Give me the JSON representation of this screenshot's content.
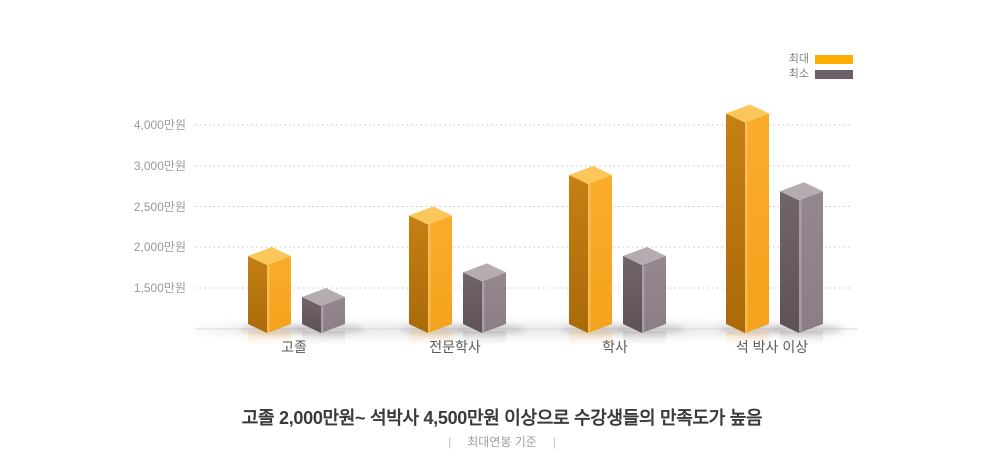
{
  "legend": {
    "items": [
      {
        "label": "최대",
        "key": "max"
      },
      {
        "label": "최소",
        "key": "min"
      }
    ]
  },
  "chart_data": {
    "type": "bar",
    "style": "3d-isometric-columns",
    "categories": [
      "고졸",
      "전문학사",
      "학사",
      "석 박사 이상"
    ],
    "series": [
      {
        "name": "최대",
        "values": [
          2000,
          2500,
          3000,
          4500
        ]
      },
      {
        "name": "최소",
        "values": [
          1500,
          1800,
          2000,
          2800
        ]
      }
    ],
    "unit": "만원",
    "yticks": {
      "labels": [
        "1,500만원",
        "2,000만원",
        "2,500만원",
        "3,000만원",
        "4,000만원"
      ],
      "values": [
        1500,
        2000,
        2500,
        3000,
        4000
      ]
    },
    "axis_note": "tick rows are evenly spaced although values are non-linear",
    "grid": "dotted-horizontal",
    "legend_position": "top-right"
  },
  "caption": {
    "title": "고졸 2,000만원~ 석박사 4,500만원 이상으로 수강생들의 만족도가 높음",
    "subtitle": "최대연봉 기준",
    "divider": "|"
  },
  "colors": {
    "legend_max": "#FFAC00",
    "legend_min": "#6B5E66",
    "bar_max_front": "#F5A21C",
    "bar_max_front_light": "#F9AC2B",
    "bar_max_side": "#C68013",
    "bar_max_side_dark": "#A96A08",
    "bar_max_top": "#FBC75B",
    "bar_min_front": "#8B7E86",
    "bar_min_front_light": "#948790",
    "bar_min_side": "#71646B",
    "bar_min_side_dark": "#5E5158",
    "bar_min_top": "#B5ACB1",
    "gridline": "#C3C3C3",
    "baseline": "#D9D9D9",
    "y_label": "#9A9A9A",
    "x_label": "#5A5A5A",
    "title": "#3A3A3A",
    "subtitle": "#9E9E9E"
  }
}
